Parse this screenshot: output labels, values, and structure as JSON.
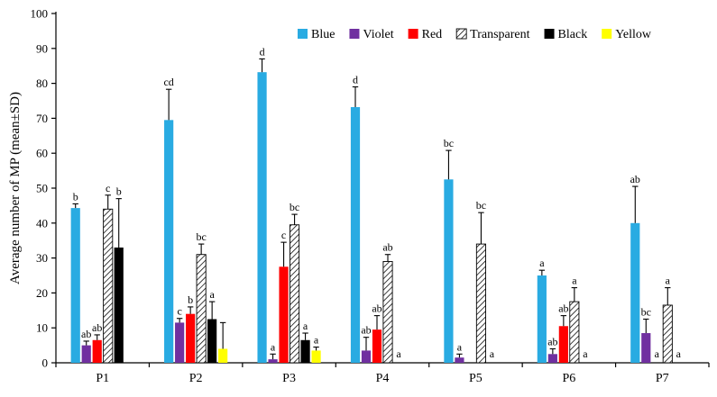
{
  "chart_data": {
    "type": "bar",
    "title": "",
    "ylabel": "Average number of MP (mean±SD)",
    "xlabel": "",
    "ylim": [
      0,
      100
    ],
    "ytick_step": 10,
    "grid": false,
    "legend_position": "top-inside",
    "categories": [
      "P1",
      "P2",
      "P3",
      "P4",
      "P5",
      "P6",
      "P7"
    ],
    "error_bars": "upper SD whisker with cap",
    "series": [
      {
        "name": "Blue",
        "color": "#29ABE2",
        "pattern": "solid",
        "values": [
          44.3,
          69.5,
          83.2,
          73.2,
          52.5,
          25.0,
          40.0
        ],
        "sd": [
          1.2,
          8.8,
          3.8,
          5.8,
          8.3,
          1.5,
          10.5
        ],
        "labels": [
          "b",
          "cd",
          "d",
          "d",
          "bc",
          "a",
          "ab"
        ]
      },
      {
        "name": "Violet",
        "color": "#7030A0",
        "pattern": "solid",
        "values": [
          5.0,
          11.5,
          1.0,
          3.5,
          1.5,
          2.5,
          8.5
        ],
        "sd": [
          1.2,
          1.2,
          1.5,
          3.8,
          1.0,
          1.5,
          4.0
        ],
        "labels": [
          "ab",
          "c",
          "a",
          "ab",
          "a",
          "ab",
          "bc"
        ]
      },
      {
        "name": "Red",
        "color": "#FF0000",
        "pattern": "solid",
        "values": [
          6.5,
          14.0,
          27.5,
          9.5,
          0,
          10.5,
          0
        ],
        "sd": [
          1.5,
          2.0,
          7.0,
          4.0,
          0,
          3.0,
          0
        ],
        "labels": [
          "ab",
          "b",
          "c",
          "ab",
          "",
          "ab",
          "a"
        ]
      },
      {
        "name": "Transparent",
        "color": "#FFFFFF",
        "pattern": "hatch",
        "values": [
          44.0,
          31.0,
          39.5,
          29.0,
          34.0,
          17.5,
          16.5
        ],
        "sd": [
          4.0,
          3.0,
          3.0,
          2.0,
          9.0,
          4.0,
          5.0
        ],
        "labels": [
          "c",
          "bc",
          "bc",
          "ab",
          "bc",
          "a",
          "a"
        ]
      },
      {
        "name": "Black",
        "color": "#000000",
        "pattern": "solid",
        "values": [
          33.0,
          12.5,
          6.5,
          0,
          0,
          0,
          0
        ],
        "sd": [
          14.0,
          5.0,
          2.0,
          0,
          0,
          0,
          0
        ],
        "labels": [
          "b",
          "a",
          "a",
          "a",
          "a",
          "a",
          "a"
        ]
      },
      {
        "name": "Yellow",
        "color": "#FFFF00",
        "pattern": "solid",
        "values": [
          0,
          4.0,
          3.5,
          0,
          0,
          0,
          0
        ],
        "sd": [
          0,
          7.5,
          1.0,
          0,
          0,
          0,
          0
        ],
        "labels": [
          "",
          "",
          "a",
          "",
          "",
          "",
          ""
        ]
      }
    ],
    "axis_color": "#000000"
  }
}
